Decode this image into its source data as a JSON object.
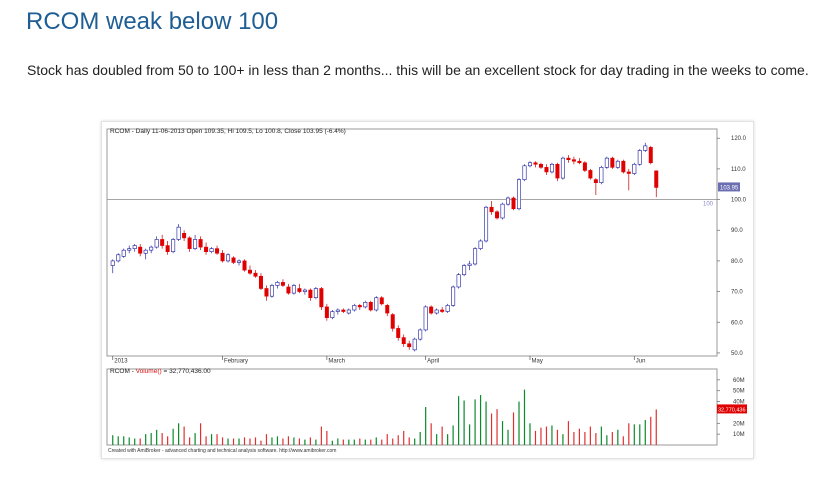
{
  "post": {
    "title": "RCOM weak below 100",
    "body": "Stock has doubled from 50 to 100+ in less than 2 months... this will be an excellent stock for day trading in the weeks to come."
  },
  "chart_data": {
    "type": "candlestick",
    "price_header": "RCOM - Daily 11-06-2013 Open 109.35, Hi 109.5, Lo 100.8, Close 103.95 (-6.4%)",
    "volume_header_prefix": "RCOM - ",
    "volume_header_label": "Volume()",
    "volume_header_value": " = 32,770,436.00",
    "footer": "Created with AmiBroker - advanced charting and technical analysis software. http://www.amibroker.com",
    "y_ticks": [
      "120.0",
      "110.0",
      "100.0",
      "90.0",
      "80.0",
      "70.0",
      "60.0",
      "50.0"
    ],
    "y_tick_values": [
      120,
      110,
      100,
      90,
      80,
      70,
      60,
      50
    ],
    "ylim": [
      49,
      123
    ],
    "reference_line": 100,
    "reference_label": "100",
    "last_price_label": "103.95",
    "last_price": 103.95,
    "x_labels": [
      {
        "label": "2013",
        "index": 0
      },
      {
        "label": "February",
        "index": 20
      },
      {
        "label": "March",
        "index": 39
      },
      {
        "label": "April",
        "index": 57
      },
      {
        "label": "May",
        "index": 76
      },
      {
        "label": "Jun",
        "index": 95
      }
    ],
    "candles": [
      [
        78.5,
        80.5,
        76.0,
        80.0
      ],
      [
        80.0,
        82.5,
        79.5,
        82.0
      ],
      [
        81.5,
        84.0,
        81.0,
        83.5
      ],
      [
        83.5,
        85.0,
        82.5,
        84.0
      ],
      [
        84.0,
        85.5,
        83.0,
        85.0
      ],
      [
        84.5,
        85.5,
        81.5,
        82.5
      ],
      [
        82.5,
        84.0,
        80.5,
        83.5
      ],
      [
        83.5,
        85.0,
        82.5,
        84.5
      ],
      [
        84.5,
        88.0,
        84.0,
        87.0
      ],
      [
        87.0,
        88.5,
        84.0,
        85.0
      ],
      [
        85.0,
        86.5,
        82.0,
        83.0
      ],
      [
        83.0,
        87.5,
        82.5,
        87.0
      ],
      [
        87.0,
        92.0,
        86.5,
        91.0
      ],
      [
        89.0,
        90.0,
        86.5,
        87.5
      ],
      [
        87.5,
        88.0,
        83.0,
        84.0
      ],
      [
        84.0,
        88.5,
        83.5,
        87.0
      ],
      [
        87.0,
        88.0,
        83.5,
        84.5
      ],
      [
        84.5,
        86.0,
        82.0,
        83.0
      ],
      [
        83.0,
        84.5,
        82.5,
        84.0
      ],
      [
        84.0,
        85.0,
        82.0,
        82.5
      ],
      [
        82.5,
        83.5,
        79.5,
        80.0
      ],
      [
        80.0,
        82.5,
        79.5,
        82.0
      ],
      [
        81.0,
        81.5,
        79.0,
        79.5
      ],
      [
        79.5,
        80.5,
        78.5,
        80.0
      ],
      [
        80.0,
        80.5,
        76.5,
        77.0
      ],
      [
        77.0,
        78.5,
        75.5,
        76.0
      ],
      [
        76.0,
        77.0,
        74.5,
        75.0
      ],
      [
        75.0,
        76.0,
        70.5,
        71.0
      ],
      [
        71.0,
        72.0,
        67.0,
        68.5
      ],
      [
        68.5,
        72.5,
        68.0,
        72.0
      ],
      [
        72.0,
        73.5,
        71.0,
        73.0
      ],
      [
        73.0,
        74.0,
        71.5,
        72.0
      ],
      [
        71.5,
        72.5,
        69.0,
        69.5
      ],
      [
        69.5,
        72.5,
        69.0,
        72.0
      ],
      [
        71.0,
        72.5,
        69.5,
        70.0
      ],
      [
        70.0,
        71.0,
        69.0,
        70.5
      ],
      [
        70.5,
        71.0,
        67.0,
        68.0
      ],
      [
        68.0,
        71.5,
        67.5,
        71.0
      ],
      [
        71.0,
        71.5,
        64.0,
        65.0
      ],
      [
        65.0,
        66.0,
        60.5,
        61.5
      ],
      [
        61.5,
        64.0,
        61.0,
        63.5
      ],
      [
        63.5,
        64.5,
        62.5,
        64.0
      ],
      [
        64.0,
        64.5,
        63.0,
        63.5
      ],
      [
        63.0,
        64.5,
        62.5,
        64.0
      ],
      [
        64.0,
        66.0,
        63.5,
        65.5
      ],
      [
        65.5,
        66.0,
        64.0,
        65.0
      ],
      [
        65.0,
        67.0,
        64.5,
        66.5
      ],
      [
        66.5,
        67.0,
        63.5,
        64.0
      ],
      [
        64.0,
        68.5,
        63.5,
        68.0
      ],
      [
        68.0,
        68.5,
        65.5,
        66.0
      ],
      [
        65.5,
        66.0,
        62.0,
        63.0
      ],
      [
        62.5,
        63.0,
        57.0,
        58.0
      ],
      [
        58.0,
        59.0,
        54.0,
        55.0
      ],
      [
        55.0,
        56.0,
        52.0,
        53.0
      ],
      [
        53.0,
        54.0,
        51.0,
        52.0
      ],
      [
        51.0,
        55.0,
        50.5,
        54.5
      ],
      [
        54.5,
        58.0,
        54.0,
        57.5
      ],
      [
        57.5,
        65.5,
        57.0,
        65.0
      ],
      [
        65.0,
        65.5,
        62.5,
        63.0
      ],
      [
        63.0,
        64.5,
        62.5,
        64.0
      ],
      [
        64.0,
        65.0,
        63.0,
        63.5
      ],
      [
        63.5,
        66.0,
        63.0,
        65.5
      ],
      [
        65.5,
        72.0,
        65.0,
        71.5
      ],
      [
        71.5,
        76.0,
        71.0,
        75.5
      ],
      [
        75.5,
        79.0,
        75.0,
        78.5
      ],
      [
        78.5,
        80.0,
        77.0,
        79.0
      ],
      [
        79.0,
        84.5,
        78.5,
        84.0
      ],
      [
        84.0,
        87.0,
        83.5,
        86.5
      ],
      [
        86.5,
        98.0,
        86.0,
        97.5
      ],
      [
        97.5,
        99.5,
        95.0,
        96.0
      ],
      [
        96.0,
        96.5,
        93.5,
        94.0
      ],
      [
        94.0,
        99.0,
        93.5,
        98.5
      ],
      [
        98.5,
        101.0,
        98.0,
        100.5
      ],
      [
        100.5,
        101.0,
        96.5,
        97.0
      ],
      [
        97.0,
        107.0,
        96.5,
        106.5
      ],
      [
        106.5,
        111.5,
        106.0,
        111.0
      ],
      [
        111.0,
        112.5,
        110.5,
        112.0
      ],
      [
        112.0,
        112.5,
        110.5,
        111.5
      ],
      [
        111.5,
        112.0,
        110.0,
        110.5
      ],
      [
        110.5,
        111.5,
        108.0,
        109.0
      ],
      [
        109.0,
        112.0,
        108.5,
        111.5
      ],
      [
        111.5,
        112.0,
        106.0,
        107.0
      ],
      [
        107.0,
        114.0,
        106.5,
        113.5
      ],
      [
        113.5,
        114.5,
        112.0,
        113.0
      ],
      [
        113.0,
        114.0,
        111.5,
        112.5
      ],
      [
        112.5,
        113.5,
        111.5,
        112.0
      ],
      [
        112.0,
        112.5,
        109.0,
        109.5
      ],
      [
        109.5,
        110.0,
        106.5,
        107.0
      ],
      [
        106.5,
        107.0,
        101.5,
        105.5
      ],
      [
        105.5,
        111.0,
        105.0,
        110.5
      ],
      [
        110.5,
        114.0,
        110.0,
        113.5
      ],
      [
        113.5,
        114.0,
        110.0,
        110.5
      ],
      [
        110.5,
        113.0,
        110.0,
        112.5
      ],
      [
        112.5,
        113.0,
        108.5,
        109.0
      ],
      [
        109.0,
        110.0,
        103.0,
        108.5
      ],
      [
        108.5,
        112.0,
        108.0,
        111.5
      ],
      [
        111.5,
        116.5,
        111.0,
        116.0
      ],
      [
        116.0,
        118.5,
        115.5,
        117.5
      ],
      [
        117.0,
        117.5,
        111.5,
        112.0
      ],
      [
        109.35,
        109.5,
        100.8,
        103.95
      ]
    ],
    "volume": {
      "y_ticks": [
        "60M",
        "50M",
        "40M",
        "20M",
        "10M"
      ],
      "y_tick_values": [
        60,
        50,
        40,
        20,
        10
      ],
      "ylim": [
        0,
        70
      ],
      "unit": "M",
      "last_value_label": "32,770,436",
      "last_value": 32.77,
      "values": [
        9,
        8,
        8,
        7,
        6,
        6,
        10,
        11,
        14,
        11,
        8,
        15,
        20,
        17,
        7,
        11,
        20,
        8,
        10,
        10,
        7,
        6,
        6,
        6,
        7,
        6,
        7,
        4,
        10,
        7,
        8,
        6,
        8,
        7,
        6,
        5,
        7,
        5,
        17,
        13,
        4,
        6,
        5,
        5,
        5,
        6,
        5,
        5,
        7,
        5,
        10,
        6,
        9,
        13,
        7,
        6,
        12,
        35,
        20,
        10,
        17,
        10,
        18,
        45,
        41,
        19,
        42,
        46,
        40,
        29,
        33,
        22,
        14,
        30,
        40,
        51,
        20,
        13,
        16,
        17,
        18,
        14,
        10,
        22,
        12,
        15,
        12,
        17,
        11,
        17,
        9,
        12,
        14,
        8,
        20,
        19,
        19,
        23,
        26,
        32.77
      ]
    }
  }
}
